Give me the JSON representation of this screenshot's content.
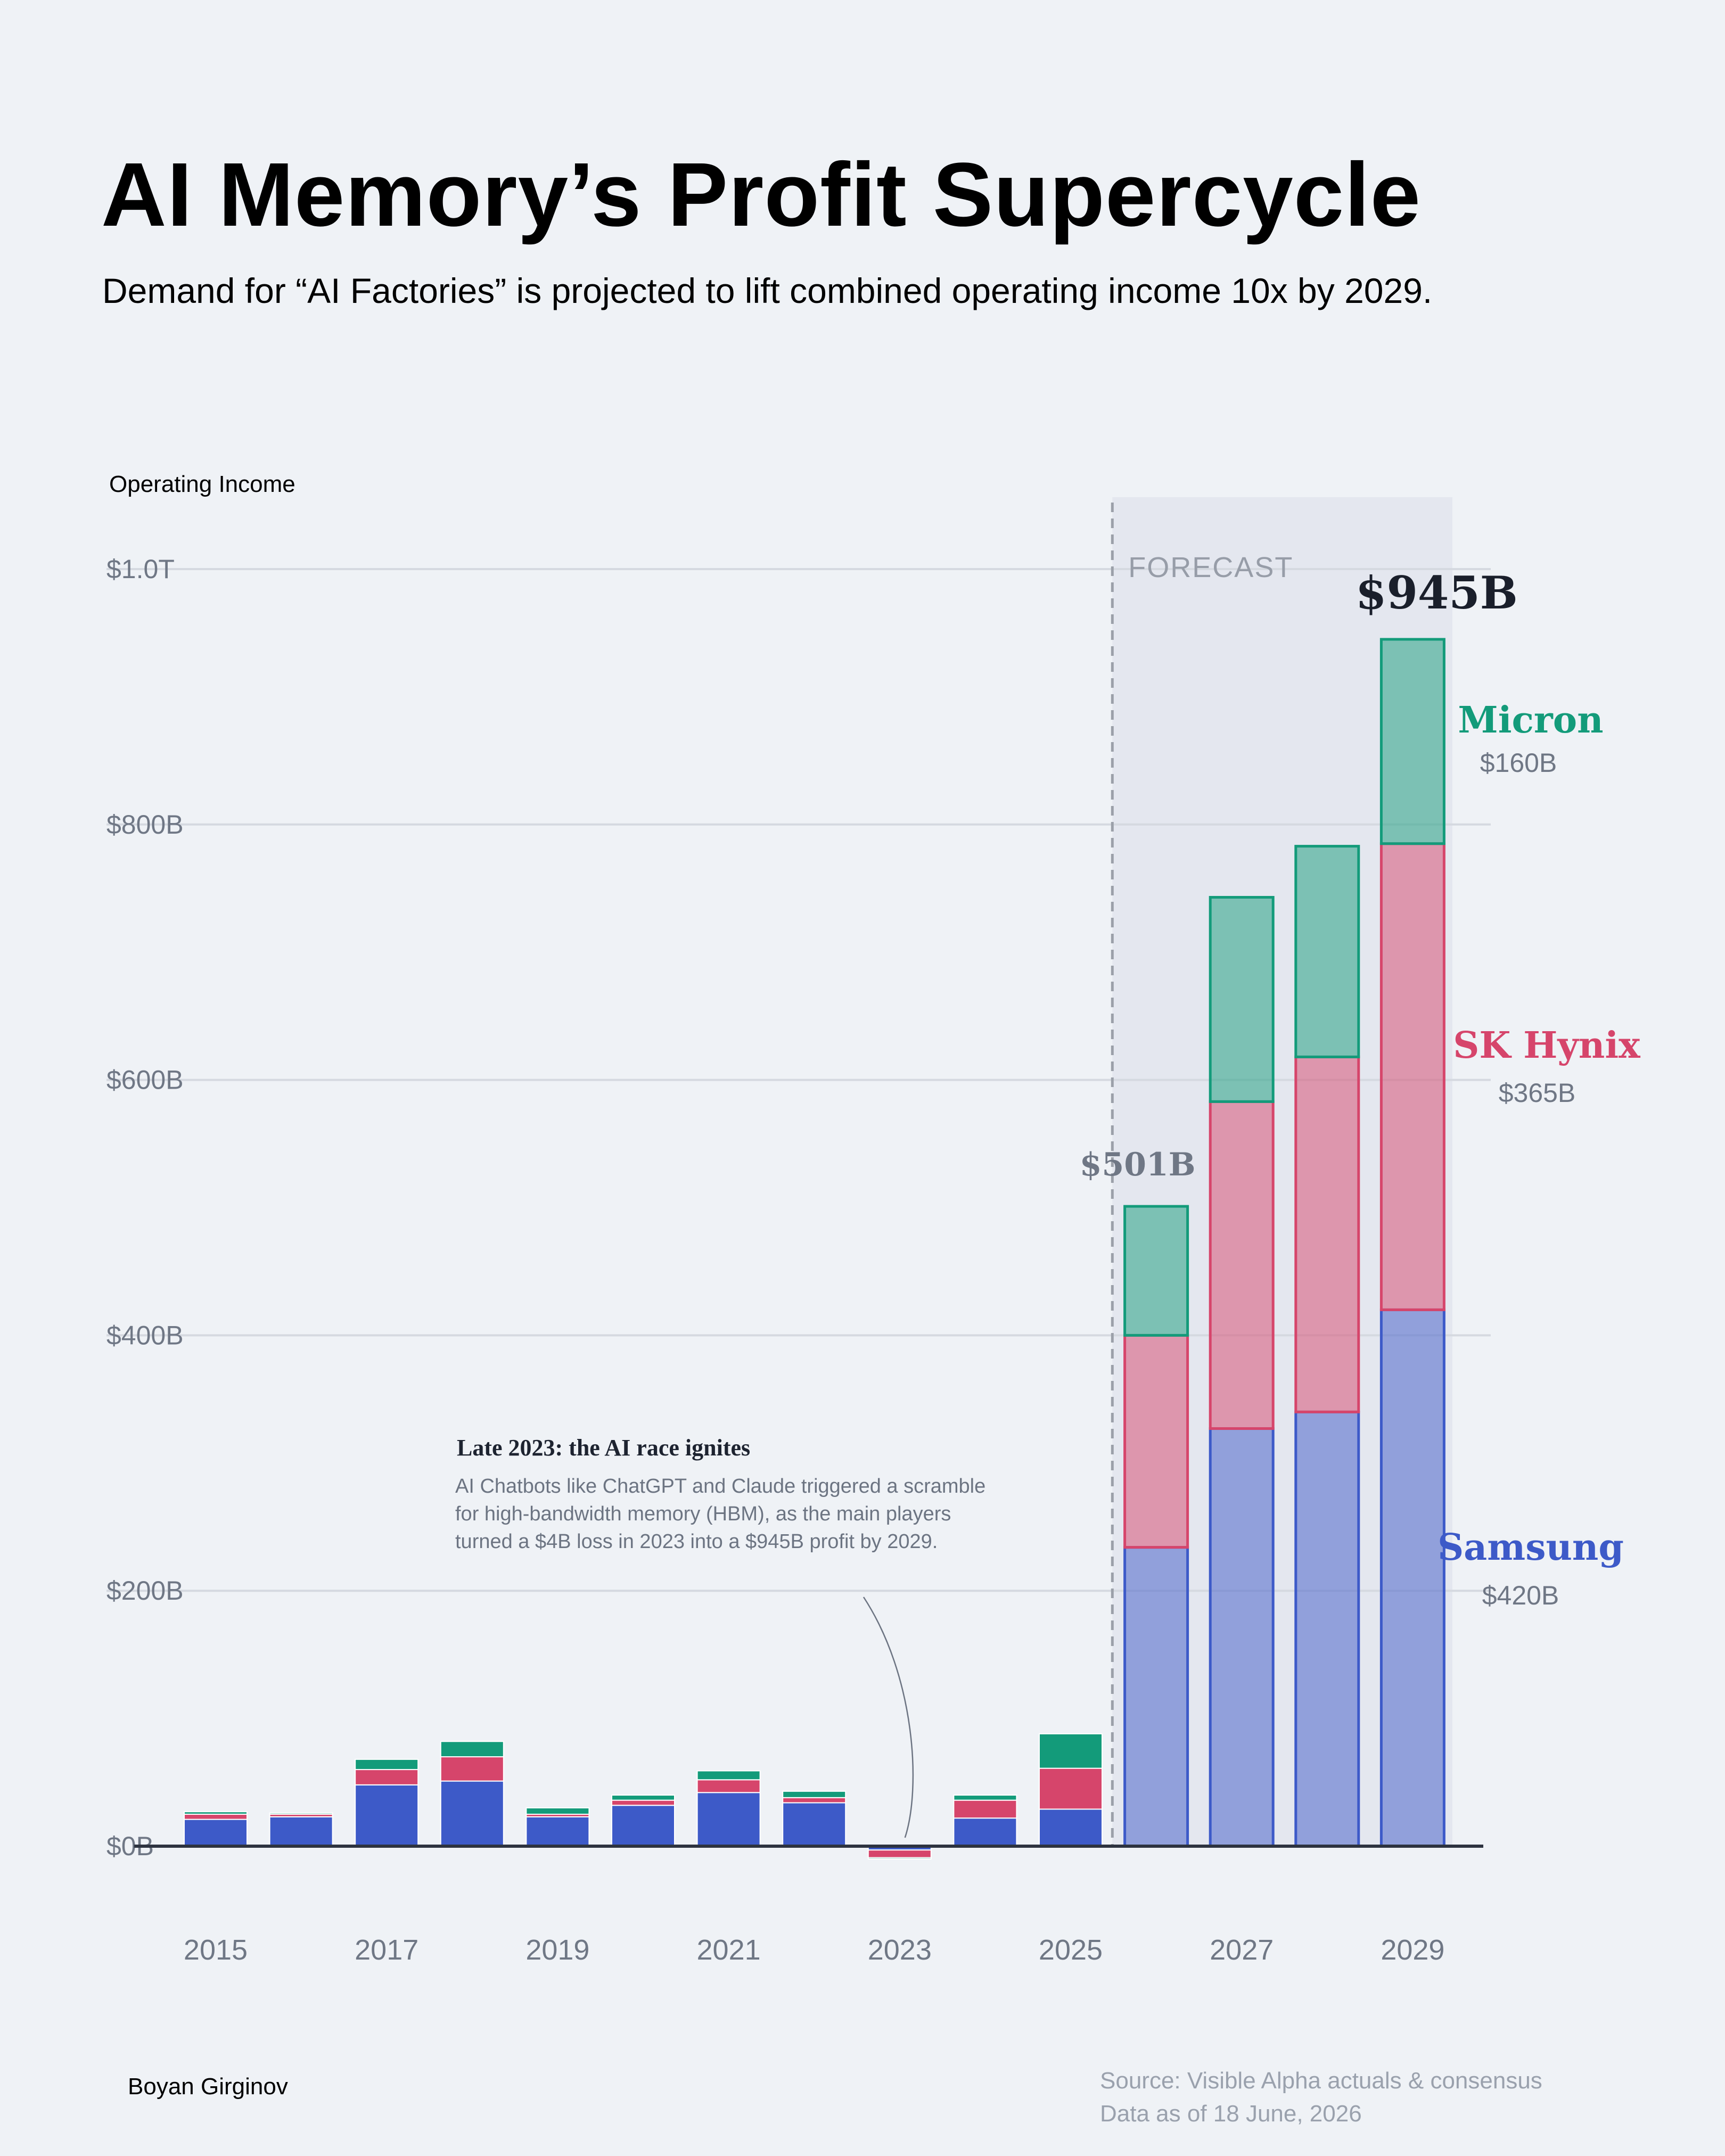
{
  "title": "AI Memory’s Profit Supercycle",
  "subtitle": "Demand for “AI Factories” is projected to lift combined operating income 10x by 2029.",
  "author": "Boyan Girginov",
  "source_line1": "Source: Visible Alpha actuals & consensus",
  "source_line2": "Data as of 18 June, 2026",
  "forecast_label": "FORECAST",
  "annotation": {
    "title": "Late 2023: the AI race ignites",
    "lines": [
      "AI Chatbots like ChatGPT and Claude triggered a scramble",
      "for high-bandwidth memory (HBM), as the main players",
      "turned a $4B loss in 2023 into a $945B profit by 2029."
    ]
  },
  "colors": {
    "samsung": "#3d5ac8",
    "sk_hynix": "#d6456b",
    "micron": "#139b7a",
    "forecast_bg": "#e4e7ef",
    "gridline": "#d5d9e0",
    "axis": "#2d3340"
  },
  "chart_data": {
    "type": "bar",
    "stacked": true,
    "ylabel": "Operating Income",
    "ylim": [
      0,
      1000
    ],
    "yticks": [
      0,
      200,
      400,
      600,
      800,
      1000
    ],
    "ytick_labels": [
      "$0B",
      "$200B",
      "$400B",
      "$600B",
      "$800B",
      "$1.0T"
    ],
    "x": [
      2015,
      2016,
      2017,
      2018,
      2019,
      2020,
      2021,
      2022,
      2023,
      2024,
      2025,
      2026,
      2027,
      2028,
      2029
    ],
    "xtick_labels": [
      "2015",
      "2017",
      "2019",
      "2021",
      "2023",
      "2025",
      "2027",
      "2029"
    ],
    "xtick_years": [
      2015,
      2017,
      2019,
      2021,
      2023,
      2025,
      2027,
      2029
    ],
    "forecast_from": 2026,
    "series": [
      {
        "name": "Samsung",
        "key": "samsung",
        "values": [
          21,
          23,
          48,
          51,
          23,
          32,
          42,
          34,
          -3,
          22,
          29,
          234,
          327,
          340,
          420
        ]
      },
      {
        "name": "SK Hynix",
        "key": "sk_hynix",
        "values": [
          4,
          2,
          12,
          19,
          2,
          4,
          10,
          4,
          -6,
          14,
          32,
          166,
          256,
          278,
          365
        ]
      },
      {
        "name": "Micron",
        "key": "micron",
        "values": [
          2,
          1,
          8,
          12,
          5,
          4,
          7,
          5,
          -1,
          4,
          27,
          101,
          160,
          165,
          160
        ]
      }
    ],
    "totals_labels": [
      {
        "year": 2026,
        "text": "$501B"
      },
      {
        "year": 2029,
        "text": "$945B"
      }
    ],
    "series_end_labels": [
      {
        "key": "micron",
        "name": "Micron",
        "value_text": "$160B"
      },
      {
        "key": "sk_hynix",
        "name": "SK Hynix",
        "value_text": "$365B"
      },
      {
        "key": "samsung",
        "name": "Samsung",
        "value_text": "$420B"
      }
    ]
  }
}
